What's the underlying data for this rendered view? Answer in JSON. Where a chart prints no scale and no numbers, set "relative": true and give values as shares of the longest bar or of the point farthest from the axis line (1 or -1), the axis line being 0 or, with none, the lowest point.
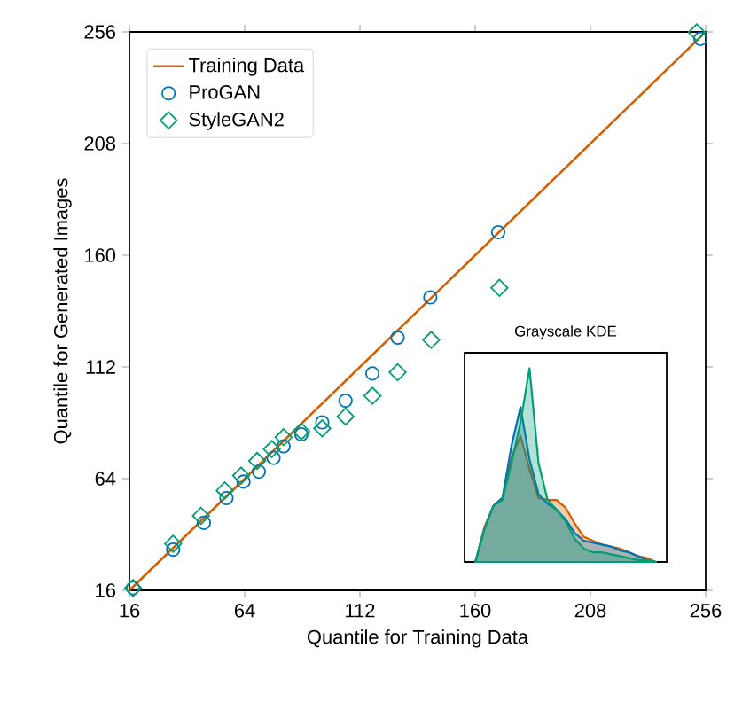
{
  "chart_data": [
    {
      "type": "scatter",
      "xlabel": "Quantile for Training Data",
      "ylabel": "Quantile for Generated Images",
      "xlim": [
        16,
        256
      ],
      "ylim": [
        16,
        256
      ],
      "xticks": [
        16,
        64,
        112,
        160,
        208,
        256
      ],
      "yticks": [
        16,
        64,
        112,
        160,
        208,
        256
      ],
      "legend": "top left",
      "grid": false,
      "series": [
        {
          "name": "Training Data",
          "type": "line",
          "marker": "none",
          "color": "#d55e00",
          "x": [
            16,
            256
          ],
          "values": [
            16,
            256
          ]
        },
        {
          "name": "ProGAN",
          "type": "scatter",
          "marker": "circle",
          "color": "#0072b2",
          "x": [
            17.5,
            34.2,
            47.0,
            56.4,
            63.5,
            69.9,
            76.0,
            80.2,
            87.6,
            96.3,
            106.0,
            117.2,
            127.7,
            141.3,
            169.6,
            253.8
          ],
          "values": [
            17,
            33.5,
            45,
            55.6,
            62.7,
            67,
            72.9,
            77.9,
            83,
            88.2,
            97.5,
            109.2,
            124.6,
            141.9,
            169.9,
            253
          ]
        },
        {
          "name": "StyleGAN2",
          "type": "scatter",
          "marker": "diamond",
          "color": "#009e73",
          "x": [
            17.5,
            34.2,
            45.8,
            55.7,
            62.5,
            69.2,
            75.3,
            80.2,
            87.6,
            96.3,
            106.0,
            117.2,
            127.7,
            141.7,
            170.1,
            252.3
          ],
          "values": [
            17,
            36,
            48,
            58.9,
            65.3,
            71.6,
            76.7,
            81.8,
            84.3,
            85.6,
            90.7,
            99.6,
            109.7,
            123.6,
            146,
            255.8
          ]
        }
      ]
    },
    {
      "type": "area",
      "title": "Grayscale KDE",
      "relative": true,
      "categories": [
        null,
        null,
        null,
        null,
        null,
        null,
        null,
        null,
        null,
        null,
        null,
        null,
        null,
        null,
        null,
        null,
        null,
        null,
        null,
        null,
        null
      ],
      "series": [
        {
          "color": "#d55e00",
          "values": [
            0,
            0.18,
            0.29,
            0.33,
            0.54,
            0.65,
            0.48,
            0.33,
            0.32,
            0.32,
            0.28,
            0.2,
            0.13,
            0.11,
            0.09,
            0.08,
            0.07,
            0.05,
            0.03,
            0.02,
            0
          ]
        },
        {
          "color": "#0072b2",
          "values": [
            0,
            0.17,
            0.29,
            0.33,
            0.6,
            0.8,
            0.53,
            0.35,
            0.3,
            0.27,
            0.22,
            0.15,
            0.11,
            0.1,
            0.09,
            0.08,
            0.06,
            0.05,
            0.03,
            0.01,
            0
          ]
        },
        {
          "color": "#009e73",
          "values": [
            0,
            0.17,
            0.29,
            0.32,
            0.51,
            0.72,
            1,
            0.51,
            0.32,
            0.27,
            0.21,
            0.12,
            0.07,
            0.05,
            0.05,
            0.04,
            0.03,
            0.02,
            0.01,
            0.01,
            0
          ]
        }
      ]
    }
  ]
}
